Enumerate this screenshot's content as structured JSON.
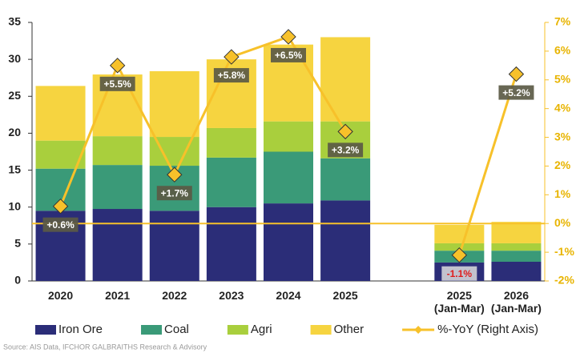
{
  "chart_data": {
    "type": "stacked-bar-line",
    "categories": [
      "2020",
      "2021",
      "2022",
      "2023",
      "2024",
      "2025",
      null,
      "2025 (Jan-Mar)",
      "2026 (Jan-Mar)"
    ],
    "series": [
      {
        "name": "Iron Ore",
        "color": "#2b2d78",
        "values": [
          9.5,
          9.75,
          9.5,
          10.0,
          10.5,
          10.9,
          null,
          2.5,
          2.6
        ]
      },
      {
        "name": "Coal",
        "color": "#3a9a78",
        "values": [
          5.7,
          5.95,
          6.1,
          6.7,
          7.0,
          5.7,
          null,
          1.6,
          1.5
        ]
      },
      {
        "name": "Agri",
        "color": "#a9cf3d",
        "values": [
          3.8,
          3.9,
          3.9,
          4.0,
          4.1,
          5.0,
          null,
          1.0,
          1.0
        ]
      },
      {
        "name": "Other",
        "color": "#f6d440",
        "values": [
          7.4,
          8.35,
          8.9,
          9.3,
          10.4,
          11.4,
          null,
          2.5,
          2.9
        ]
      },
      {
        "name": "%-YoY (Right Axis)",
        "color": "#f7c12a",
        "axis": "y2",
        "values": [
          0.6,
          5.5,
          1.7,
          5.8,
          6.5,
          3.2,
          null,
          -1.1,
          5.2
        ],
        "value_labels": [
          "+0.6%",
          "+5.5%",
          "+1.7%",
          "+5.8%",
          "+6.5%",
          "+3.2%",
          null,
          "-1.1%",
          "+5.2%"
        ]
      }
    ],
    "ylim": [
      0,
      35
    ],
    "yticks": [
      0,
      5,
      10,
      15,
      20,
      25,
      30,
      35
    ],
    "y2lim": [
      -2,
      7
    ],
    "y2ticks": [
      {
        "value": -2,
        "label": "-2%"
      },
      {
        "value": -1,
        "label": "-1%"
      },
      {
        "value": 0,
        "label": "0%"
      },
      {
        "value": 1,
        "label": "1%"
      },
      {
        "value": 2,
        "label": "2%"
      },
      {
        "value": 3,
        "label": "3%"
      },
      {
        "value": 4,
        "label": "4%"
      },
      {
        "value": 5,
        "label": "5%"
      },
      {
        "value": 6,
        "label": "6%"
      },
      {
        "value": 7,
        "label": "7%"
      }
    ],
    "source": "Source: AIS Data, IFCHOR GALBRAITHS Research & Advisory"
  }
}
